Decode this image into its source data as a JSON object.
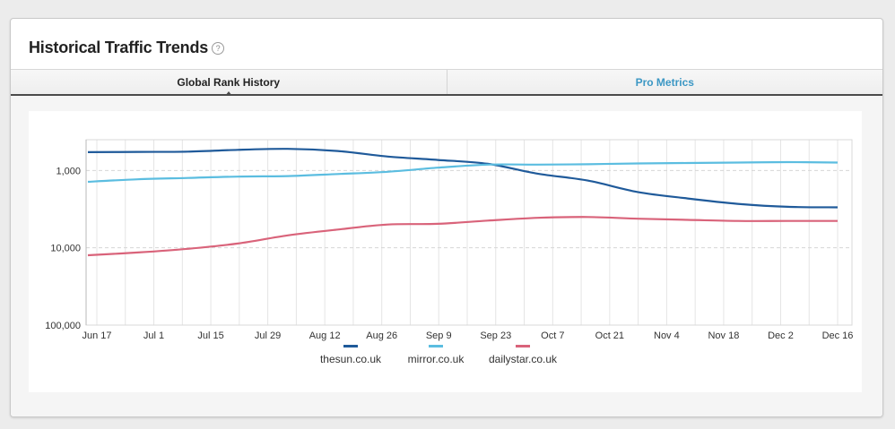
{
  "panel": {
    "title": "Historical Traffic Trends",
    "help_glyph": "?"
  },
  "tabs": [
    {
      "label": "Global Rank History",
      "active": true
    },
    {
      "label": "Pro Metrics",
      "active": false
    }
  ],
  "chart_data": {
    "type": "line",
    "y_scale": "log",
    "y_reversed": true,
    "ylim": [
      100000,
      400
    ],
    "y_ticks": [
      {
        "value": 1000,
        "label": "1,000"
      },
      {
        "value": 10000,
        "label": "10,000"
      },
      {
        "value": 100000,
        "label": "100,000"
      }
    ],
    "x_tick_labels": [
      "Jun 17",
      "Jul 1",
      "Jul 15",
      "Jul 29",
      "Aug 12",
      "Aug 26",
      "Sep 9",
      "Sep 23",
      "Oct 7",
      "Oct 21",
      "Nov 4",
      "Nov 18",
      "Dec 2",
      "Dec 16"
    ],
    "grid": true,
    "legend_position": "bottom",
    "series": [
      {
        "name": "thesun.co.uk",
        "color": "#1f5a9a",
        "values": [
          580,
          575,
          570,
          540,
          525,
          560,
          660,
          730,
          820,
          1100,
          1350,
          1900,
          2300,
          2700,
          2950,
          3000
        ]
      },
      {
        "name": "mirror.co.uk",
        "color": "#5bbde0",
        "values": [
          1400,
          1300,
          1250,
          1200,
          1180,
          1110,
          1040,
          920,
          840,
          840,
          830,
          810,
          800,
          790,
          780,
          790
        ]
      },
      {
        "name": "dailystar.co.uk",
        "color": "#d9637a",
        "values": [
          12500,
          11500,
          10300,
          8800,
          6900,
          5800,
          5000,
          4900,
          4450,
          4100,
          4000,
          4200,
          4350,
          4500,
          4500,
          4500
        ]
      }
    ]
  }
}
